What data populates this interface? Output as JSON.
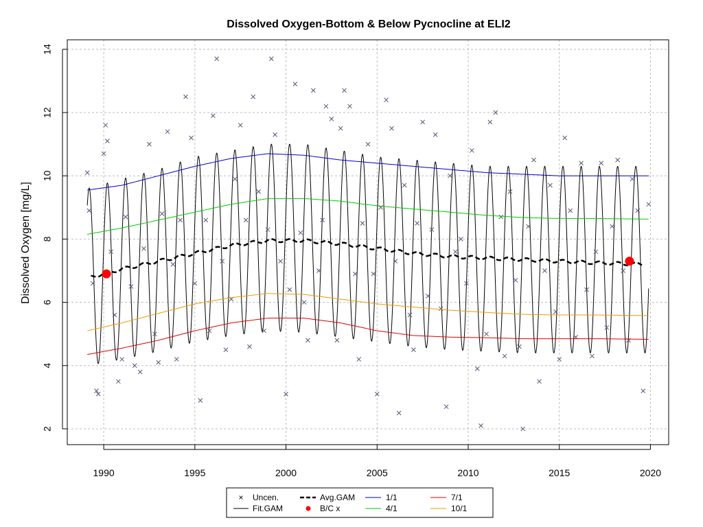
{
  "chart_data": {
    "type": "line",
    "title": "Dissolved Oxygen-Bottom & Below Pycnocline at ELI2",
    "xlabel": "",
    "ylabel": "Dissolved Oxygen [mg/L]",
    "xlim": [
      1988,
      2021
    ],
    "ylim": [
      1.5,
      14.3
    ],
    "x_ticks": [
      "1990",
      "1995",
      "2000",
      "2005",
      "2010",
      "2015",
      "2020"
    ],
    "y_ticks": [
      "2",
      "4",
      "6",
      "8",
      "10",
      "12",
      "14"
    ],
    "grid": true,
    "legend_position": "bottom-center",
    "legend": {
      "uncen": "Uncen.",
      "fit_gam": "Fit.GAM",
      "avg_gam": "Avg.GAM",
      "bc": "B/C x",
      "d1_1": "1/1",
      "d4_1": "4/1",
      "d7_1": "7/1",
      "d10_1": "10/1"
    },
    "colors": {
      "uncen": "#555577",
      "fit": "#000000",
      "avg": "#000000",
      "bc": "#ff0000",
      "d1_1": "#0000cc",
      "d4_1": "#00cc00",
      "d7_1": "#dd0000",
      "d10_1": "#ee9900",
      "grid": "#bbbbbb"
    },
    "bc_points": [
      {
        "x": 1990.15,
        "y": 6.9
      },
      {
        "x": 2018.85,
        "y": 7.3
      }
    ],
    "series": [
      {
        "name": "1/1",
        "x": [
          1989.1,
          1991,
          1993,
          1995,
          1997,
          1999,
          2001,
          2003,
          2005,
          2007,
          2009,
          2011,
          2013,
          2015,
          2017,
          2019.9
        ],
        "y": [
          9.55,
          9.7,
          10.0,
          10.3,
          10.55,
          10.7,
          10.65,
          10.5,
          10.4,
          10.3,
          10.2,
          10.1,
          10.05,
          10.0,
          10.0,
          10.0
        ]
      },
      {
        "name": "4/1",
        "x": [
          1989.1,
          1991,
          1993,
          1995,
          1997,
          1999,
          2001,
          2003,
          2005,
          2007,
          2009,
          2011,
          2013,
          2015,
          2017,
          2019.9
        ],
        "y": [
          8.15,
          8.35,
          8.6,
          8.85,
          9.1,
          9.28,
          9.28,
          9.2,
          9.05,
          8.95,
          8.85,
          8.75,
          8.68,
          8.65,
          8.65,
          8.63
        ]
      },
      {
        "name": "7/1",
        "x": [
          1989.1,
          1991,
          1993,
          1995,
          1997,
          1999,
          2001,
          2003,
          2005,
          2007,
          2009,
          2011,
          2013,
          2015,
          2017,
          2019.9
        ],
        "y": [
          4.35,
          4.55,
          4.8,
          5.1,
          5.35,
          5.5,
          5.5,
          5.35,
          5.1,
          4.95,
          4.9,
          4.88,
          4.85,
          4.85,
          4.85,
          4.83
        ]
      },
      {
        "name": "10/1",
        "x": [
          1989.1,
          1991,
          1993,
          1995,
          1997,
          1999,
          2001,
          2003,
          2005,
          2007,
          2009,
          2011,
          2013,
          2015,
          2017,
          2019.9
        ],
        "y": [
          5.1,
          5.35,
          5.65,
          5.95,
          6.15,
          6.28,
          6.25,
          6.1,
          5.95,
          5.85,
          5.75,
          5.68,
          5.62,
          5.6,
          5.6,
          5.58
        ]
      },
      {
        "name": "Avg.GAM",
        "x": [
          1989.3,
          1991,
          1993,
          1995,
          1997,
          1999,
          2001,
          2003,
          2005,
          2007,
          2009,
          2011,
          2013,
          2015,
          2017,
          2019.6
        ],
        "y": [
          6.8,
          7.05,
          7.3,
          7.55,
          7.8,
          7.95,
          7.95,
          7.85,
          7.7,
          7.55,
          7.45,
          7.4,
          7.35,
          7.3,
          7.25,
          7.2
        ]
      },
      {
        "name": "Fit.GAM",
        "x": [
          1989.1,
          1991,
          1993,
          1995,
          1997,
          1999,
          2001,
          2003,
          2005,
          2007,
          2009,
          2011,
          2013,
          2015,
          2017,
          2019.9
        ],
        "y_upper": [
          9.6,
          9.9,
          10.2,
          10.6,
          10.8,
          11.0,
          11.0,
          10.8,
          10.6,
          10.5,
          10.4,
          10.3,
          10.3,
          10.3,
          10.3,
          10.3
        ],
        "y_lower": [
          4.0,
          4.2,
          4.45,
          4.75,
          4.95,
          5.1,
          5.05,
          4.9,
          4.75,
          4.6,
          4.5,
          4.45,
          4.4,
          4.4,
          4.4,
          4.4
        ]
      }
    ],
    "uncensored": {
      "x": [
        1989.1,
        1989.2,
        1989.4,
        1989.6,
        1989.7,
        1990.0,
        1990.1,
        1990.2,
        1990.4,
        1990.6,
        1990.8,
        1991.0,
        1991.2,
        1991.5,
        1991.7,
        1992.0,
        1992.2,
        1992.5,
        1992.8,
        1993.0,
        1993.2,
        1993.5,
        1993.8,
        1994.0,
        1994.2,
        1994.5,
        1994.8,
        1995.0,
        1995.3,
        1995.6,
        1995.8,
        1996.0,
        1996.2,
        1996.5,
        1996.7,
        1997.0,
        1997.2,
        1997.5,
        1997.8,
        1998.0,
        1998.2,
        1998.5,
        1998.8,
        1999.0,
        1999.2,
        1999.4,
        1999.7,
        2000.0,
        2000.2,
        2000.5,
        2000.8,
        2001.0,
        2001.2,
        2001.5,
        2001.8,
        2002.0,
        2002.2,
        2002.5,
        2002.8,
        2003.0,
        2003.2,
        2003.5,
        2003.8,
        2004.0,
        2004.2,
        2004.5,
        2004.8,
        2005.0,
        2005.2,
        2005.5,
        2005.8,
        2006.0,
        2006.2,
        2006.5,
        2006.8,
        2007.0,
        2007.2,
        2007.5,
        2007.8,
        2008.0,
        2008.2,
        2008.5,
        2008.8,
        2009.0,
        2009.3,
        2009.6,
        2009.9,
        2010.2,
        2010.5,
        2010.7,
        2011.0,
        2011.2,
        2011.5,
        2011.8,
        2012.0,
        2012.3,
        2012.6,
        2012.8,
        2013.0,
        2013.3,
        2013.6,
        2013.9,
        2014.2,
        2014.5,
        2014.8,
        2015.0,
        2015.3,
        2015.6,
        2015.9,
        2016.2,
        2016.5,
        2016.8,
        2017.0,
        2017.3,
        2017.6,
        2017.9,
        2018.2,
        2018.5,
        2018.8,
        2019.0,
        2019.3,
        2019.6,
        2019.9
      ],
      "y": [
        10.1,
        8.9,
        6.6,
        3.2,
        3.1,
        10.7,
        11.6,
        11.1,
        7.6,
        5.6,
        3.5,
        4.2,
        8.7,
        6.5,
        4.0,
        3.8,
        7.7,
        11.0,
        5.0,
        4.1,
        8.8,
        11.4,
        7.2,
        4.2,
        8.6,
        12.5,
        11.2,
        6.6,
        2.9,
        8.6,
        5.1,
        11.9,
        13.7,
        7.3,
        4.5,
        6.1,
        9.9,
        11.6,
        8.6,
        4.6,
        12.5,
        9.5,
        5.1,
        8.3,
        13.7,
        11.3,
        7.3,
        3.1,
        6.4,
        12.9,
        8.2,
        6.0,
        4.8,
        12.7,
        7.0,
        8.6,
        12.2,
        11.8,
        4.8,
        11.5,
        12.7,
        12.2,
        6.9,
        4.2,
        8.5,
        11.0,
        6.9,
        3.1,
        9.0,
        12.4,
        11.5,
        7.3,
        2.5,
        9.7,
        5.6,
        4.5,
        8.5,
        11.7,
        6.2,
        8.3,
        11.3,
        5.8,
        2.7,
        10.0,
        7.6,
        8.0,
        6.6,
        10.8,
        3.9,
        2.1,
        5.0,
        11.7,
        12.0,
        8.7,
        4.3,
        9.5,
        6.7,
        4.6,
        2.0,
        8.4,
        10.5,
        3.5,
        7.0,
        9.7,
        5.7,
        4.2,
        11.2,
        8.9,
        4.9,
        10.4,
        6.4,
        4.3,
        7.6,
        10.4,
        5.2,
        8.4,
        10.5,
        7.0,
        4.8,
        9.9,
        8.9,
        3.2,
        9.1
      ]
    }
  }
}
